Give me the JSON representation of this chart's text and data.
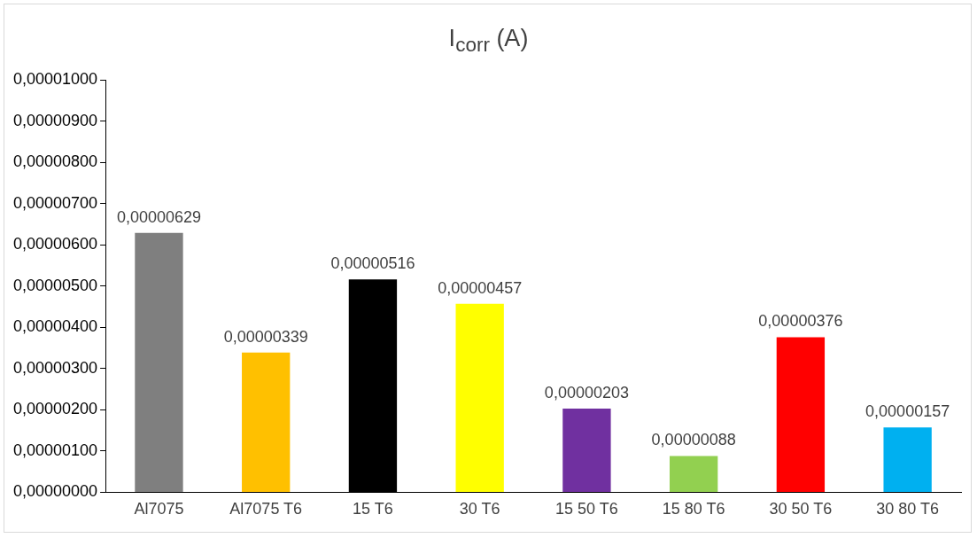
{
  "chart_data": {
    "type": "bar",
    "title": "I$_{corr}$ (A)",
    "categories": [
      "Al7075",
      "Al7075 T6",
      "15 T6",
      "30 T6",
      "15 50 T6",
      "15 80 T6",
      "30 50 T6",
      "30 80 T6"
    ],
    "values": [
      6.29e-06,
      3.39e-06,
      5.16e-06,
      4.57e-06,
      2.03e-06,
      8.8e-07,
      3.76e-06,
      1.57e-06
    ],
    "colors": [
      "#7f7f7f",
      "#ffc000",
      "#000000",
      "#ffff00",
      "#7030a0",
      "#92d050",
      "#ff0000",
      "#00b0f0"
    ],
    "value_labels": [
      "0,00000629",
      "0,00000339",
      "0,00000516",
      "0,00000457",
      "0,00000203",
      "0,00000088",
      "0,00000376",
      "0,00000157"
    ],
    "ylim": [
      0,
      1e-05
    ],
    "yticks": [
      {
        "value": 0,
        "label": "0,00000000"
      },
      {
        "value": 1e-06,
        "label": "0,00000100"
      },
      {
        "value": 2e-06,
        "label": "0,00000200"
      },
      {
        "value": 3e-06,
        "label": "0,00000300"
      },
      {
        "value": 4e-06,
        "label": "0,00000400"
      },
      {
        "value": 5e-06,
        "label": "0,00000500"
      },
      {
        "value": 6e-06,
        "label": "0,00000600"
      },
      {
        "value": 7e-06,
        "label": "0,00000700"
      },
      {
        "value": 8e-06,
        "label": "0,00000800"
      },
      {
        "value": 9e-06,
        "label": "0,00000900"
      },
      {
        "value": 1e-05,
        "label": "0,00001000"
      }
    ],
    "grid": false,
    "legend": false
  }
}
